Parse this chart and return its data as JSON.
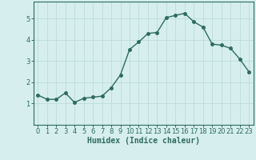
{
  "x": [
    0,
    1,
    2,
    3,
    4,
    5,
    6,
    7,
    8,
    9,
    10,
    11,
    12,
    13,
    14,
    15,
    16,
    17,
    18,
    19,
    20,
    21,
    22,
    23
  ],
  "y": [
    1.4,
    1.2,
    1.2,
    1.5,
    1.05,
    1.25,
    1.3,
    1.35,
    1.75,
    2.35,
    3.55,
    3.9,
    4.3,
    4.35,
    5.05,
    5.15,
    5.25,
    4.85,
    4.6,
    3.8,
    3.75,
    3.6,
    3.1,
    2.5
  ],
  "line_color": "#2e6b5e",
  "marker": "o",
  "marker_size": 2.5,
  "line_width": 1.0,
  "bg_color": "#d6eeee",
  "grid_color": "#b8d8d8",
  "xlabel": "Humidex (Indice chaleur)",
  "ylim": [
    0,
    5.8
  ],
  "xlim": [
    -0.5,
    23.5
  ],
  "yticks": [
    1,
    2,
    3,
    4,
    5
  ],
  "xticks": [
    0,
    1,
    2,
    3,
    4,
    5,
    6,
    7,
    8,
    9,
    10,
    11,
    12,
    13,
    14,
    15,
    16,
    17,
    18,
    19,
    20,
    21,
    22,
    23
  ],
  "label_fontsize": 7.0,
  "tick_fontsize": 6.0,
  "tick_color": "#2e6b5e",
  "axis_color": "#2e6b5e"
}
